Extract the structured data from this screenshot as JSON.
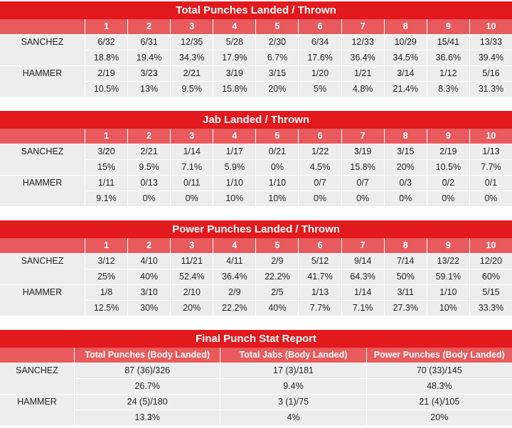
{
  "tables": [
    {
      "title": "Total Punches Landed / Thrown",
      "columns": [
        "1",
        "2",
        "3",
        "4",
        "5",
        "6",
        "7",
        "8",
        "9",
        "10"
      ],
      "rows": [
        {
          "name": "SANCHEZ",
          "values": [
            "6/32",
            "6/31",
            "12/35",
            "5/28",
            "2/30",
            "6/34",
            "12/33",
            "10/29",
            "15/41",
            "13/33"
          ],
          "percents": [
            "18.8%",
            "19.4%",
            "34.3%",
            "17.9%",
            "6.7%",
            "17.6%",
            "36.4%",
            "34.5%",
            "36.6%",
            "39.4%"
          ]
        },
        {
          "name": "HAMMER",
          "values": [
            "2/19",
            "3/23",
            "2/21",
            "3/19",
            "3/15",
            "1/20",
            "1/21",
            "3/14",
            "1/12",
            "5/16"
          ],
          "percents": [
            "10.5%",
            "13%",
            "9.5%",
            "15.8%",
            "20%",
            "5%",
            "4.8%",
            "21.4%",
            "8.3%",
            "31.3%"
          ]
        }
      ]
    },
    {
      "title": "Jab Landed / Thrown",
      "columns": [
        "1",
        "2",
        "3",
        "4",
        "5",
        "6",
        "7",
        "8",
        "9",
        "10"
      ],
      "rows": [
        {
          "name": "SANCHEZ",
          "values": [
            "3/20",
            "2/21",
            "1/14",
            "1/17",
            "0/21",
            "1/22",
            "3/19",
            "3/15",
            "2/19",
            "1/13"
          ],
          "percents": [
            "15%",
            "9.5%",
            "7.1%",
            "5.9%",
            "0%",
            "4.5%",
            "15.8%",
            "20%",
            "10.5%",
            "7.7%"
          ]
        },
        {
          "name": "HAMMER",
          "values": [
            "1/11",
            "0/13",
            "0/11",
            "1/10",
            "1/10",
            "0/7",
            "0/7",
            "0/3",
            "0/2",
            "0/1"
          ],
          "percents": [
            "9.1%",
            "0%",
            "0%",
            "10%",
            "10%",
            "0%",
            "0%",
            "0%",
            "0%",
            "0%"
          ]
        }
      ]
    },
    {
      "title": "Power Punches Landed / Thrown",
      "columns": [
        "1",
        "2",
        "3",
        "4",
        "5",
        "6",
        "7",
        "8",
        "9",
        "10"
      ],
      "rows": [
        {
          "name": "SANCHEZ",
          "values": [
            "3/12",
            "4/10",
            "11/21",
            "4/11",
            "2/9",
            "5/12",
            "9/14",
            "7/14",
            "13/22",
            "12/20"
          ],
          "percents": [
            "25%",
            "40%",
            "52.4%",
            "36.4%",
            "22.2%",
            "41.7%",
            "64.3%",
            "50%",
            "59.1%",
            "60%"
          ]
        },
        {
          "name": "HAMMER",
          "values": [
            "1/8",
            "3/10",
            "2/10",
            "2/9",
            "2/5",
            "1/13",
            "1/14",
            "3/11",
            "1/10",
            "5/15"
          ],
          "percents": [
            "12.5%",
            "30%",
            "20%",
            "22.2%",
            "40%",
            "7.7%",
            "7.1%",
            "27.3%",
            "10%",
            "33.3%"
          ]
        }
      ]
    },
    {
      "title": "Final Punch Stat Report",
      "columns": [
        "Total Punches (Body Landed)",
        "Total Jabs (Body Landed)",
        "Power Punches (Body Landed)"
      ],
      "rows": [
        {
          "name": "SANCHEZ",
          "values": [
            "87 (36)/326",
            "17 (3)/181",
            "70 (33)/145"
          ],
          "percents": [
            "26.7%",
            "9.4%",
            "48.3%"
          ]
        },
        {
          "name": "HAMMER",
          "values": [
            "24 (5)/180",
            "3 (1)/75",
            "21 (4)/105"
          ],
          "percents": [
            "13.3%",
            "4%",
            "20%"
          ]
        }
      ]
    }
  ]
}
